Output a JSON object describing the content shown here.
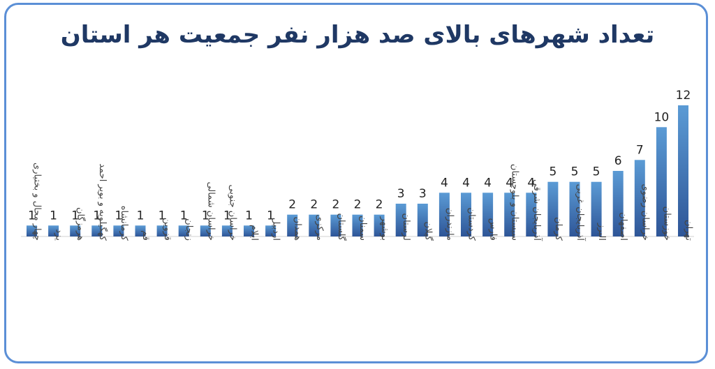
{
  "chart_data": {
    "type": "bar",
    "title": "تعداد شهرهای بالای صد هزار نفر جمعیت هر استان",
    "categories": [
      "چهار محال و بختیاری",
      "یزد",
      "هرمزگان",
      "کهگیلویه و بویر احمد",
      "کرمانشاه",
      "قم",
      "قزوین",
      "زنجان",
      "خراسان شمالی",
      "خراسان جنوبی",
      "ایلام",
      "اردبیل",
      "همدان",
      "مرکزی",
      "گلستان",
      "سمنان",
      "بوشهر",
      "لرستان",
      "گیلان",
      "مازندران",
      "کردستان",
      "فارس",
      "سیستان و بلوچستان",
      "آذربایجان شرقی",
      "کرمان",
      "آذربایجان غربی",
      "البرز",
      "اصفهان",
      "خراسان رضوی",
      "خوزستان",
      "تهران"
    ],
    "values": [
      1,
      1,
      1,
      1,
      1,
      1,
      1,
      1,
      1,
      1,
      1,
      1,
      2,
      2,
      2,
      2,
      2,
      3,
      3,
      4,
      4,
      4,
      4,
      4,
      5,
      5,
      5,
      6,
      7,
      10,
      12
    ],
    "ylim": [
      0,
      12
    ],
    "grid": false,
    "legend": "none",
    "bar_color_top": "#5b9bd5",
    "bar_color_bottom": "#2e5597"
  }
}
